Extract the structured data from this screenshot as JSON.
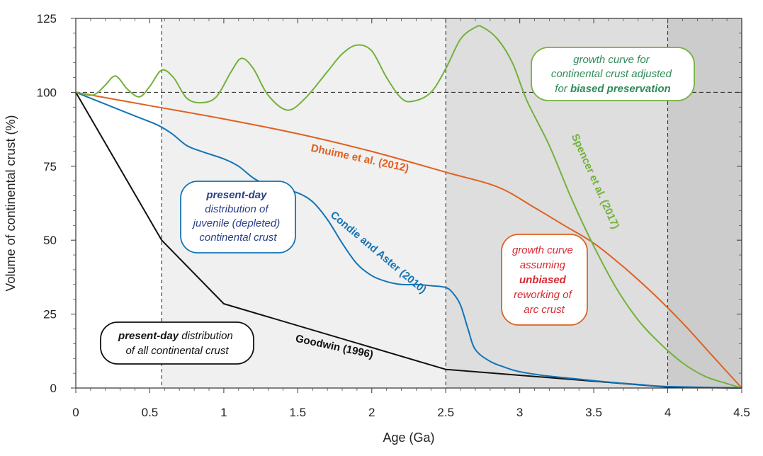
{
  "colors": {
    "goodwin": "#111111",
    "condie": "#1474b4",
    "dhuime": "#e0611f",
    "spencer": "#72b23a",
    "shade_light": "#f0f0f0",
    "shade_mid": "#dedede",
    "shade_dark": "#cccccc",
    "present_juvenile_text": "#2a3f86",
    "present_juvenile_border": "#1474b4",
    "unbiased_text": "#d8282f",
    "unbiased_border": "#e0611f",
    "biased_text": "#2e8b57",
    "biased_border": "#72b23a"
  },
  "chart_data": {
    "type": "line",
    "xlabel": "Age (Ga)",
    "ylabel": "Volume of continental crust (%)",
    "xlim": [
      0,
      4.5
    ],
    "ylim": [
      0,
      125
    ],
    "x_ticks": [
      "0",
      "0.5",
      "1",
      "1.5",
      "2",
      "2.5",
      "3",
      "3.5",
      "4",
      "4.5"
    ],
    "y_ticks": [
      "0",
      "25",
      "50",
      "75",
      "100",
      "125"
    ],
    "x_tick_values": [
      0,
      0.5,
      1,
      1.5,
      2,
      2.5,
      3,
      3.5,
      4,
      4.5
    ],
    "y_tick_values": [
      0,
      25,
      50,
      75,
      100,
      125
    ],
    "shaded_regions": [
      {
        "x": [
          0.58,
          2.5
        ],
        "color": "shade_light"
      },
      {
        "x": [
          2.5,
          4.0
        ],
        "color": "shade_mid"
      },
      {
        "x": [
          4.0,
          4.5
        ],
        "color": "shade_dark"
      }
    ],
    "reference_lines": {
      "vertical_x": [
        0.58,
        2.5,
        4.0
      ],
      "horizontal_y": [
        100
      ]
    },
    "series": [
      {
        "name": "Goodwin (1996)",
        "color": "goodwin",
        "x": [
          0,
          0.58,
          1.0,
          2.5,
          4.0,
          4.5
        ],
        "y": [
          100,
          50,
          28.5,
          6.3,
          0.3,
          0
        ]
      },
      {
        "name": "Condie and Aster (2010)",
        "color": "condie",
        "x": [
          0,
          0.2,
          0.4,
          0.55,
          0.65,
          0.75,
          0.85,
          1.0,
          1.1,
          1.2,
          1.3,
          1.4,
          1.5,
          1.6,
          1.7,
          1.8,
          1.9,
          2.0,
          2.1,
          2.2,
          2.3,
          2.4,
          2.5,
          2.55,
          2.6,
          2.65,
          2.7,
          2.8,
          2.9,
          3.0,
          3.2,
          3.4,
          3.6,
          3.8,
          4.0,
          4.5
        ],
        "y": [
          100,
          96,
          92,
          89,
          86,
          82,
          80,
          77.5,
          75,
          71,
          68.5,
          67,
          66,
          63,
          57,
          49,
          42,
          38,
          36,
          35,
          35,
          34.6,
          34,
          32,
          28,
          20,
          13,
          9,
          7,
          5.5,
          4,
          3,
          2,
          1.2,
          0.5,
          0
        ]
      },
      {
        "name": "Dhuime et al. (2012)",
        "color": "dhuime",
        "x": [
          0,
          0.5,
          1.0,
          1.5,
          2.0,
          2.5,
          2.85,
          3.1,
          3.3,
          3.5,
          3.7,
          3.9,
          4.1,
          4.3,
          4.5
        ],
        "y": [
          100,
          95.5,
          91,
          86,
          80,
          73,
          68,
          61,
          55,
          49,
          41,
          32,
          22,
          11,
          0
        ]
      },
      {
        "name": "Spencer et al. (2017)",
        "color": "spencer",
        "x": [
          0,
          0.1,
          0.15,
          0.2,
          0.27,
          0.35,
          0.43,
          0.5,
          0.58,
          0.66,
          0.75,
          0.85,
          0.95,
          1.05,
          1.12,
          1.2,
          1.3,
          1.43,
          1.55,
          1.7,
          1.8,
          1.9,
          2.0,
          2.1,
          2.2,
          2.28,
          2.4,
          2.5,
          2.6,
          2.7,
          2.75,
          2.85,
          2.95,
          3.05,
          3.2,
          3.35,
          3.5,
          3.65,
          3.8,
          3.95,
          4.1,
          4.25,
          4.4,
          4.5
        ],
        "y": [
          100,
          99,
          100,
          102.5,
          105.5,
          101,
          98.5,
          102,
          107.5,
          105,
          98,
          96.5,
          98.5,
          107,
          111.5,
          108,
          99,
          94,
          98,
          107,
          113,
          116,
          114,
          105,
          98,
          97,
          100,
          108,
          118,
          122,
          122,
          118,
          110,
          97,
          82,
          64,
          48,
          34,
          23,
          15,
          8.5,
          4,
          1.5,
          0
        ]
      }
    ],
    "curve_labels": [
      {
        "text": "Goodwin (1996)",
        "series": 0
      },
      {
        "text": "Condie and Aster (2010)",
        "series": 1
      },
      {
        "text": "Dhuime et al. (2012)",
        "series": 2
      },
      {
        "text": "Spencer et al. (2017)",
        "series": 3
      }
    ],
    "annotations": [
      {
        "key": "all",
        "lines": [
          [
            "present-day",
            " distribution"
          ],
          [
            "of all continental crust"
          ]
        ]
      },
      {
        "key": "juvenile",
        "lines": [
          [
            "present-day"
          ],
          [
            "distribution of"
          ],
          [
            "juvenile (depleted)"
          ],
          [
            "continental crust"
          ]
        ]
      },
      {
        "key": "unbiased",
        "lines": [
          [
            "growth curve"
          ],
          [
            "assuming"
          ],
          [
            "unbiased"
          ],
          [
            "reworking of"
          ],
          [
            "arc crust"
          ]
        ]
      },
      {
        "key": "biased",
        "lines": [
          [
            "growth curve for"
          ],
          [
            "continental crust adjusted"
          ],
          [
            "for ",
            "biased preservation"
          ]
        ]
      }
    ]
  }
}
